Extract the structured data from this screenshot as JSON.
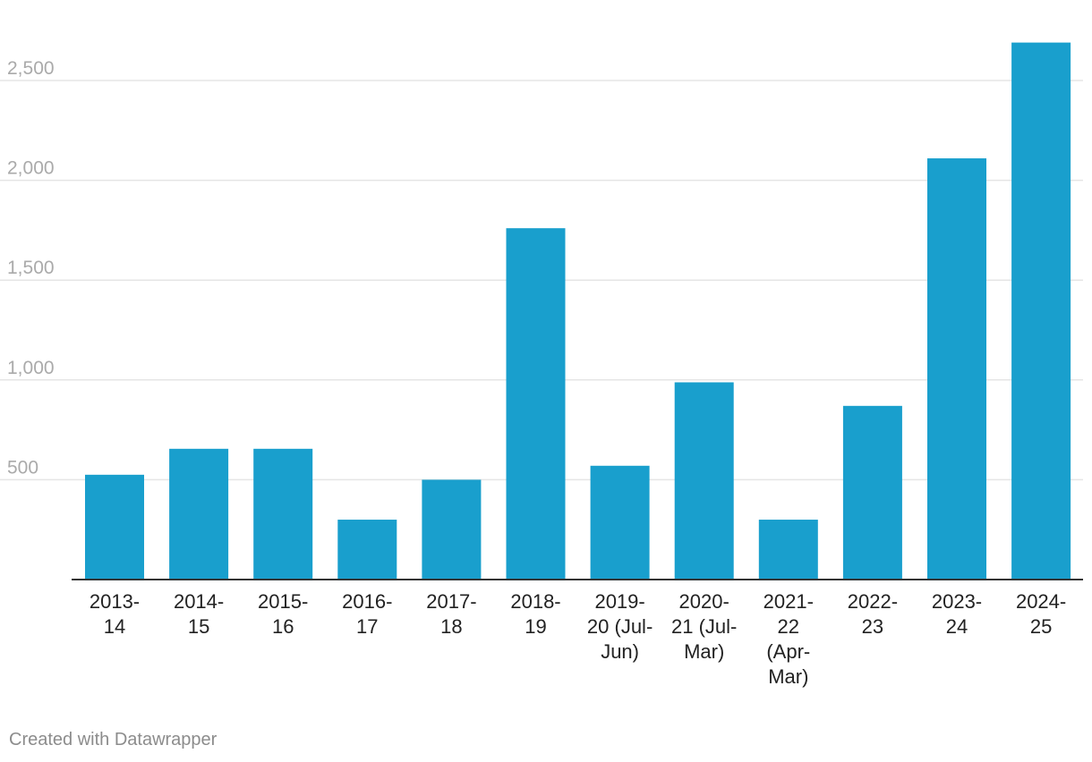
{
  "chart_data": {
    "type": "bar",
    "categories": [
      "2013-14",
      "2014-15",
      "2015-16",
      "2016-17",
      "2017-18",
      "2018-19",
      "2019-20 (Jul-Jun)",
      "2020-21 (Jul-Mar)",
      "2021-22 (Apr-Mar)",
      "2022-23",
      "2023-24",
      "2024-25"
    ],
    "category_label_lines": [
      [
        "2013-",
        "14"
      ],
      [
        "2014-",
        "15"
      ],
      [
        "2015-",
        "16"
      ],
      [
        "2016-",
        "17"
      ],
      [
        "2017-",
        "18"
      ],
      [
        "2018-",
        "19"
      ],
      [
        "2019-",
        "20 (Jul-",
        "Jun)"
      ],
      [
        "2020-",
        "21 (Jul-",
        "Mar)"
      ],
      [
        "2021-",
        "22",
        "(Apr-",
        "Mar)"
      ],
      [
        "2022-",
        "23"
      ],
      [
        "2023-",
        "24"
      ],
      [
        "2024-",
        "25"
      ]
    ],
    "values": [
      525,
      655,
      655,
      300,
      500,
      1760,
      570,
      988,
      300,
      870,
      2110,
      2690
    ],
    "title": "",
    "xlabel": "",
    "ylabel": "",
    "ylim": [
      0,
      2700
    ],
    "yticks": [
      500,
      1000,
      1500,
      2000,
      2500
    ],
    "ytick_labels": [
      "500",
      "1,000",
      "1,500",
      "2,000",
      "2,500"
    ],
    "grid": true,
    "legend": "none",
    "bar_color": "#199fcd",
    "gridline_color": "#e5e5e5",
    "baseline_color": "#333333"
  },
  "footer": {
    "credit": "Created with Datawrapper"
  }
}
